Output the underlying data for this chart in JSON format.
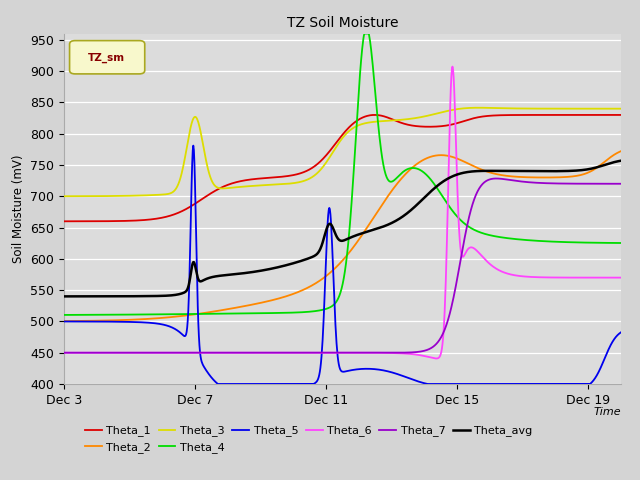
{
  "title": "TZ Soil Moisture",
  "xlabel": "Time",
  "ylabel": "Soil Moisture (mV)",
  "ylim": [
    400,
    960
  ],
  "yticks": [
    400,
    450,
    500,
    550,
    600,
    650,
    700,
    750,
    800,
    850,
    900,
    950
  ],
  "xtick_labels": [
    "Dec 3",
    "Dec 7",
    "Dec 11",
    "Dec 15",
    "Dec 19"
  ],
  "xtick_positions": [
    0,
    4,
    8,
    12,
    16
  ],
  "xlim": [
    0,
    17
  ],
  "series_colors": {
    "Theta_1": "#dd0000",
    "Theta_2": "#ff8800",
    "Theta_3": "#dddd00",
    "Theta_4": "#00dd00",
    "Theta_5": "#0000ee",
    "Theta_6": "#ff44ff",
    "Theta_7": "#9900cc",
    "Theta_avg": "#000000"
  },
  "fig_bg": "#d4d4d4",
  "plot_bg": "#dcdcdc",
  "grid_color": "#ffffff",
  "legend_box_face": "#f8f8cc",
  "legend_box_edge": "#aaa820",
  "legend_text_color": "#880000"
}
